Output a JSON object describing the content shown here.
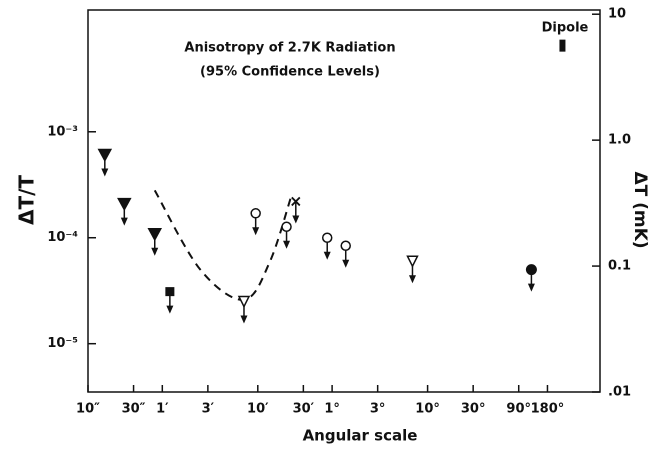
{
  "chart_data": {
    "type": "scatter",
    "title": "Anisotropy of 2.7K Radiation",
    "subtitle": "(95% Confidence Levels)",
    "annotation": "Dipole",
    "xlabel": "Angular scale",
    "ylabel": "ΔT/T",
    "y2label": "ΔT (mK)",
    "xlog": true,
    "ylog": true,
    "y2log": true,
    "xlim": [
      10,
      2300000
    ],
    "ylim": [
      3.5e-06,
      0.0141
    ],
    "y2lim": [
      0.01,
      10.8
    ],
    "xticks": [
      {
        "value": 10,
        "label": "10″"
      },
      {
        "value": 30,
        "label": "30″"
      },
      {
        "value": 60,
        "label": "1′"
      },
      {
        "value": 180,
        "label": "3′"
      },
      {
        "value": 600,
        "label": "10′"
      },
      {
        "value": 1800,
        "label": "30′"
      },
      {
        "value": 3600,
        "label": "1°"
      },
      {
        "value": 10800,
        "label": "3°"
      },
      {
        "value": 36000,
        "label": "10°"
      },
      {
        "value": 108000,
        "label": "30°"
      },
      {
        "value": 324000,
        "label": "90°"
      },
      {
        "value": 648000,
        "label": "180°"
      }
    ],
    "yticks": [
      {
        "value": 0.001,
        "label": "10⁻³"
      },
      {
        "value": 0.0001,
        "label": "10⁻⁴"
      },
      {
        "value": 1e-05,
        "label": "10⁻⁵"
      }
    ],
    "y2ticks": [
      10,
      {
        "value": 1,
        "label": "1.0"
      },
      0.1,
      {
        "value": 0.01,
        "label": ".01"
      }
    ],
    "color": "#111111",
    "series": [
      {
        "marker": "filled-triangle",
        "upper_limit": true,
        "x": [
          15,
          24,
          50
        ],
        "values": [
          0.00061,
          0.00021,
          0.000109
        ]
      },
      {
        "marker": "filled-square",
        "upper_limit": true,
        "x": [
          72
        ],
        "values": [
          3.1e-05
        ]
      },
      {
        "marker": "open-triangle",
        "upper_limit": true,
        "x": [
          430,
          25000
        ],
        "values": [
          2.5e-05,
          6e-05
        ]
      },
      {
        "marker": "open-circle",
        "upper_limit": true,
        "x": [
          570,
          1200,
          3200,
          5000
        ],
        "values": [
          0.00017,
          0.000127,
          0.0001,
          8.4e-05
        ]
      },
      {
        "marker": "cross",
        "upper_limit": true,
        "x": [
          1500
        ],
        "values": [
          0.00022
        ]
      },
      {
        "marker": "filled-circle",
        "upper_limit": true,
        "x": [
          440000
        ],
        "values": [
          5e-05
        ]
      },
      {
        "marker": "bar",
        "upper_limit": false,
        "x": [
          930000
        ],
        "values": [
          0.0065
        ]
      }
    ],
    "curve": {
      "style": "dashed",
      "x": [
        50,
        150,
        430,
        800,
        1350
      ],
      "values": [
        0.00028,
        5e-05,
        2.6e-05,
        5.9e-05,
        0.00025
      ]
    }
  }
}
